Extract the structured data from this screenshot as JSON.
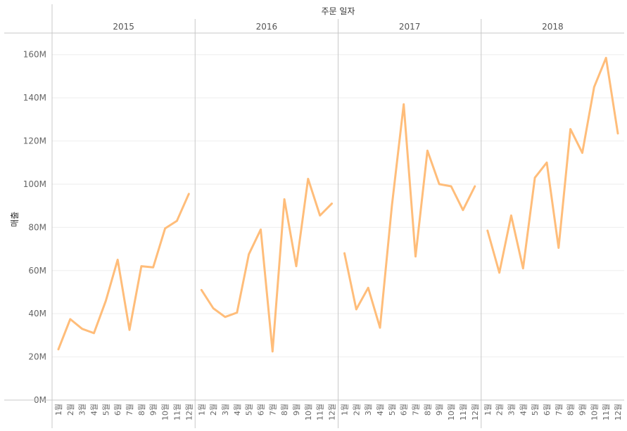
{
  "chart_data": {
    "type": "line",
    "title": "",
    "column_header": "주문 일자",
    "ylabel": "매출",
    "ylim": [
      0,
      170000000
    ],
    "y_ticks": [
      {
        "value": 0,
        "label": "0M"
      },
      {
        "value": 20000000,
        "label": "20M"
      },
      {
        "value": 40000000,
        "label": "40M"
      },
      {
        "value": 60000000,
        "label": "60M"
      },
      {
        "value": 80000000,
        "label": "80M"
      },
      {
        "value": 100000000,
        "label": "100M"
      },
      {
        "value": 120000000,
        "label": "120M"
      },
      {
        "value": 140000000,
        "label": "140M"
      },
      {
        "value": 160000000,
        "label": "160M"
      }
    ],
    "categories": [
      "1월",
      "2월",
      "3월",
      "4월",
      "5월",
      "6월",
      "7월",
      "8월",
      "9월",
      "10월",
      "11월",
      "12월"
    ],
    "gridlines": true,
    "series_color": "#ffbd7a",
    "panels": [
      {
        "year": "2015",
        "values": [
          23500000,
          37500000,
          33000000,
          31000000,
          46000000,
          65000000,
          32500000,
          62000000,
          61500000,
          79500000,
          83000000,
          95500000
        ]
      },
      {
        "year": "2016",
        "values": [
          51000000,
          42500000,
          38500000,
          40500000,
          67500000,
          79000000,
          22500000,
          93000000,
          62000000,
          102500000,
          85500000,
          91000000
        ]
      },
      {
        "year": "2017",
        "values": [
          68000000,
          42000000,
          52000000,
          33500000,
          90000000,
          137000000,
          66500000,
          115500000,
          100000000,
          99000000,
          88000000,
          99000000
        ]
      },
      {
        "year": "2018",
        "values": [
          78500000,
          59000000,
          85500000,
          61000000,
          103000000,
          110000000,
          70500000,
          125500000,
          114500000,
          145000000,
          158500000,
          123500000
        ]
      }
    ]
  }
}
